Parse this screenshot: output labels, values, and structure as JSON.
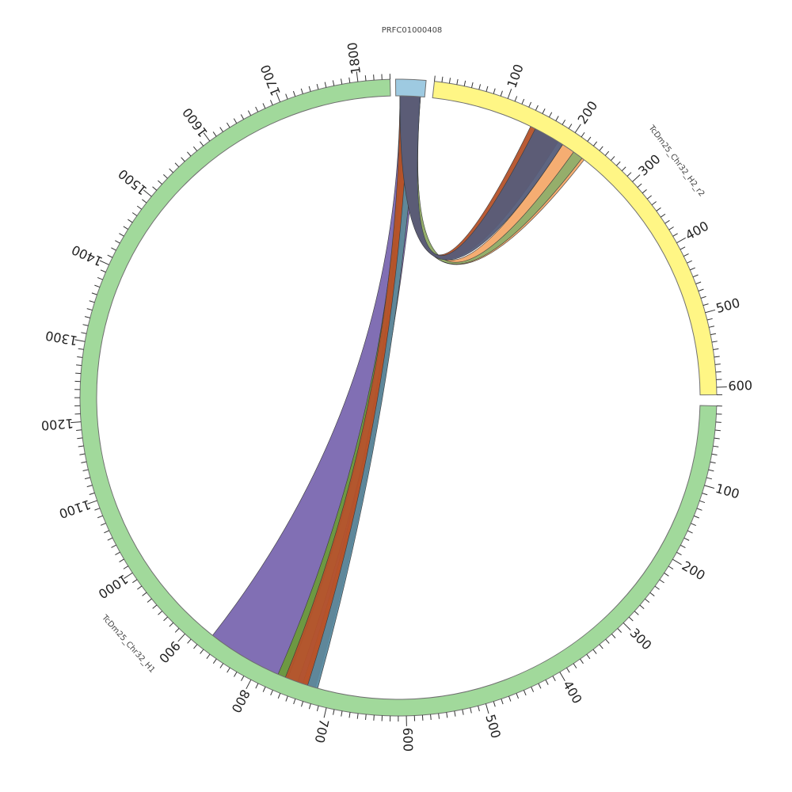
{
  "segments": [
    {
      "id": "prfc",
      "label": "PRFC01000408",
      "color": "#9ecae1"
    },
    {
      "id": "h2",
      "label": "TcDm25_Chr32_H2_r2",
      "color": "#fff685"
    },
    {
      "id": "h1",
      "label": "TcDm25_Chr32_H1",
      "color": "#a1d99b"
    }
  ],
  "tick_labels": {
    "h2": [
      "100",
      "200",
      "300",
      "400",
      "500",
      "600"
    ],
    "h1": [
      "100",
      "200",
      "300",
      "400",
      "500",
      "600",
      "700",
      "800",
      "900",
      "1000",
      "1100",
      "1200",
      "1300",
      "1400",
      "1500",
      "1600",
      "1700",
      "1800"
    ]
  },
  "colors": {
    "slate": "#565d7a",
    "rust": "#b5522a",
    "orange": "#d2691e",
    "green": "#6b9a3c",
    "purple": "#7a67b0",
    "olive": "#8fae6a",
    "peach": "#f4a96a",
    "teal": "#5a8aa0"
  }
}
